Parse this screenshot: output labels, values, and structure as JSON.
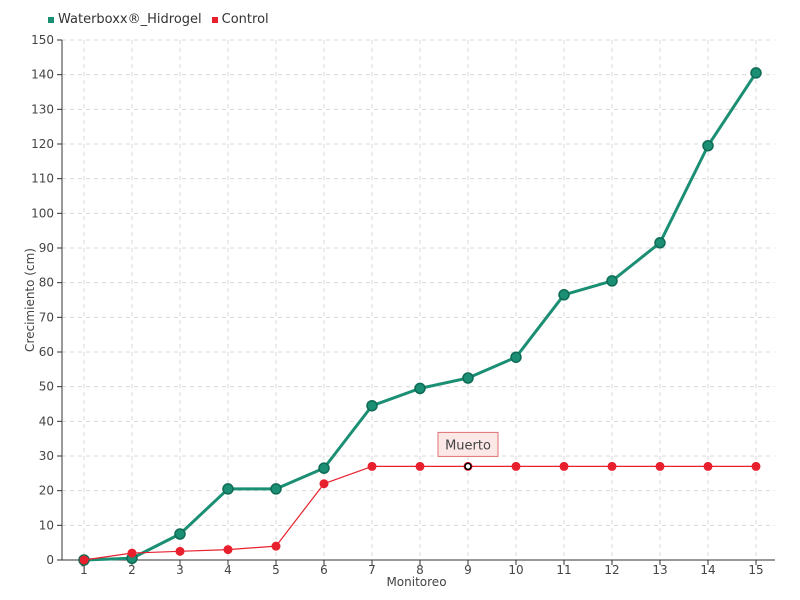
{
  "chart_data": {
    "type": "line",
    "xlabel": "Monitoreo",
    "ylabel": "Crecimiento (cm)",
    "x": [
      1,
      2,
      3,
      4,
      5,
      6,
      7,
      8,
      9,
      10,
      11,
      12,
      13,
      14,
      15
    ],
    "ylim": [
      0,
      150
    ],
    "yticks": [
      0,
      10,
      20,
      30,
      40,
      50,
      60,
      70,
      80,
      90,
      100,
      110,
      120,
      130,
      140,
      150
    ],
    "grid": true,
    "legend_position": "top-left",
    "series": [
      {
        "name": "Waterboxx®_Hidrogel",
        "color": "#1b8f73",
        "values": [
          0,
          0.5,
          7.5,
          20.5,
          20.5,
          26.5,
          44.5,
          49.5,
          52.5,
          58.5,
          76.5,
          80.5,
          91.5,
          119.5,
          140.5
        ]
      },
      {
        "name": "Control",
        "color": "#e8202e",
        "values": [
          0,
          2,
          2.5,
          3,
          4,
          22,
          27,
          27,
          27,
          27,
          27,
          27,
          27,
          27,
          27
        ]
      }
    ],
    "annotations": [
      {
        "text": "Muerto",
        "series": "Control",
        "x": 9,
        "y": 27
      }
    ]
  }
}
